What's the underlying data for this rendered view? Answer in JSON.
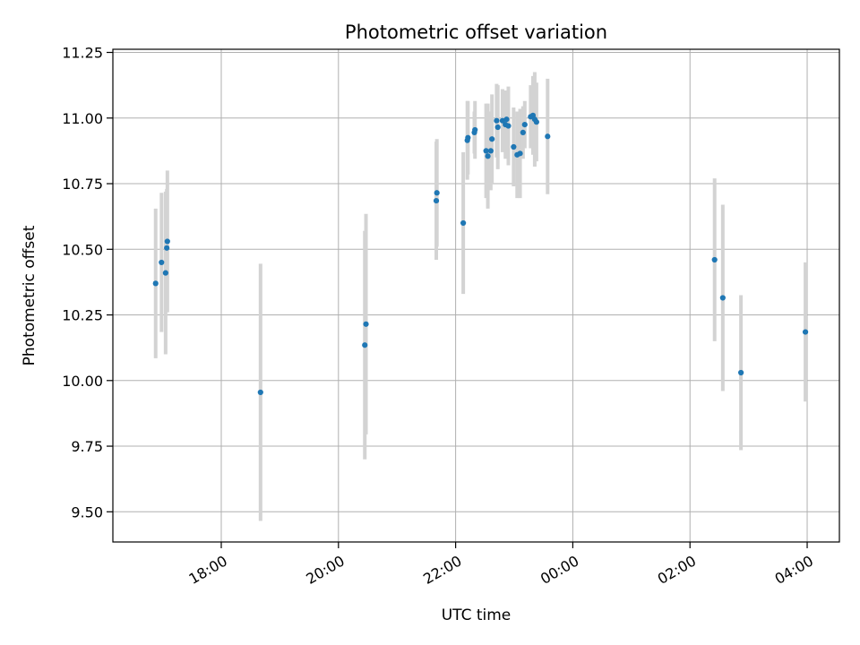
{
  "chart_data": {
    "type": "scatter",
    "title": "Photometric offset variation",
    "xlabel": "UTC time",
    "ylabel": "Photometric offset",
    "x_unit": "hours since 00:00 UTC of first day (values above 24 fall on the next day)",
    "xlim": [
      16.15,
      28.55
    ],
    "ylim": [
      9.385,
      11.262
    ],
    "x_ticks": [
      {
        "value": 18,
        "label": "18:00"
      },
      {
        "value": 20,
        "label": "20:00"
      },
      {
        "value": 22,
        "label": "22:00"
      },
      {
        "value": 24,
        "label": "00:00"
      },
      {
        "value": 26,
        "label": "02:00"
      },
      {
        "value": 28,
        "label": "04:00"
      }
    ],
    "y_ticks": [
      {
        "value": 9.5,
        "label": "9.50"
      },
      {
        "value": 9.75,
        "label": "9.75"
      },
      {
        "value": 10.0,
        "label": "10.00"
      },
      {
        "value": 10.25,
        "label": "10.25"
      },
      {
        "value": 10.5,
        "label": "10.50"
      },
      {
        "value": 10.75,
        "label": "10.75"
      },
      {
        "value": 11.0,
        "label": "11.00"
      },
      {
        "value": 11.25,
        "label": "11.25"
      }
    ],
    "grid": true,
    "marker_color": "#1f77b4",
    "errorbar_color": "#d3d3d3",
    "points": [
      {
        "x": 16.88,
        "y": 10.37,
        "err": 0.285
      },
      {
        "x": 16.98,
        "y": 10.45,
        "err": 0.265
      },
      {
        "x": 17.05,
        "y": 10.41,
        "err": 0.31
      },
      {
        "x": 17.07,
        "y": 10.505,
        "err": 0.225
      },
      {
        "x": 17.08,
        "y": 10.53,
        "err": 0.27
      },
      {
        "x": 18.67,
        "y": 9.955,
        "err": 0.49
      },
      {
        "x": 20.45,
        "y": 10.135,
        "err": 0.435
      },
      {
        "x": 20.47,
        "y": 10.215,
        "err": 0.42
      },
      {
        "x": 21.67,
        "y": 10.685,
        "err": 0.225
      },
      {
        "x": 21.68,
        "y": 10.715,
        "err": 0.205
      },
      {
        "x": 22.13,
        "y": 10.6,
        "err": 0.27
      },
      {
        "x": 22.2,
        "y": 10.915,
        "err": 0.15
      },
      {
        "x": 22.21,
        "y": 10.925,
        "err": 0.14
      },
      {
        "x": 22.32,
        "y": 10.945,
        "err": 0.08
      },
      {
        "x": 22.33,
        "y": 10.955,
        "err": 0.11
      },
      {
        "x": 22.52,
        "y": 10.875,
        "err": 0.18
      },
      {
        "x": 22.55,
        "y": 10.855,
        "err": 0.2
      },
      {
        "x": 22.6,
        "y": 10.875,
        "err": 0.15
      },
      {
        "x": 22.62,
        "y": 10.92,
        "err": 0.17
      },
      {
        "x": 22.7,
        "y": 10.99,
        "err": 0.14
      },
      {
        "x": 22.72,
        "y": 10.965,
        "err": 0.16
      },
      {
        "x": 22.8,
        "y": 10.99,
        "err": 0.12
      },
      {
        "x": 22.85,
        "y": 10.975,
        "err": 0.13
      },
      {
        "x": 22.87,
        "y": 10.995,
        "err": 0.1
      },
      {
        "x": 22.9,
        "y": 10.97,
        "err": 0.15
      },
      {
        "x": 22.99,
        "y": 10.89,
        "err": 0.15
      },
      {
        "x": 23.05,
        "y": 10.86,
        "err": 0.165
      },
      {
        "x": 23.1,
        "y": 10.865,
        "err": 0.17
      },
      {
        "x": 23.15,
        "y": 10.945,
        "err": 0.1
      },
      {
        "x": 23.18,
        "y": 10.975,
        "err": 0.09
      },
      {
        "x": 23.28,
        "y": 11.005,
        "err": 0.12
      },
      {
        "x": 23.32,
        "y": 11.01,
        "err": 0.15
      },
      {
        "x": 23.35,
        "y": 10.995,
        "err": 0.18
      },
      {
        "x": 23.38,
        "y": 10.985,
        "err": 0.15
      },
      {
        "x": 23.57,
        "y": 10.93,
        "err": 0.22
      },
      {
        "x": 26.42,
        "y": 10.46,
        "err": 0.31
      },
      {
        "x": 26.56,
        "y": 10.315,
        "err": 0.355
      },
      {
        "x": 26.87,
        "y": 10.03,
        "err": 0.295
      },
      {
        "x": 27.97,
        "y": 10.185,
        "err": 0.265
      }
    ]
  }
}
